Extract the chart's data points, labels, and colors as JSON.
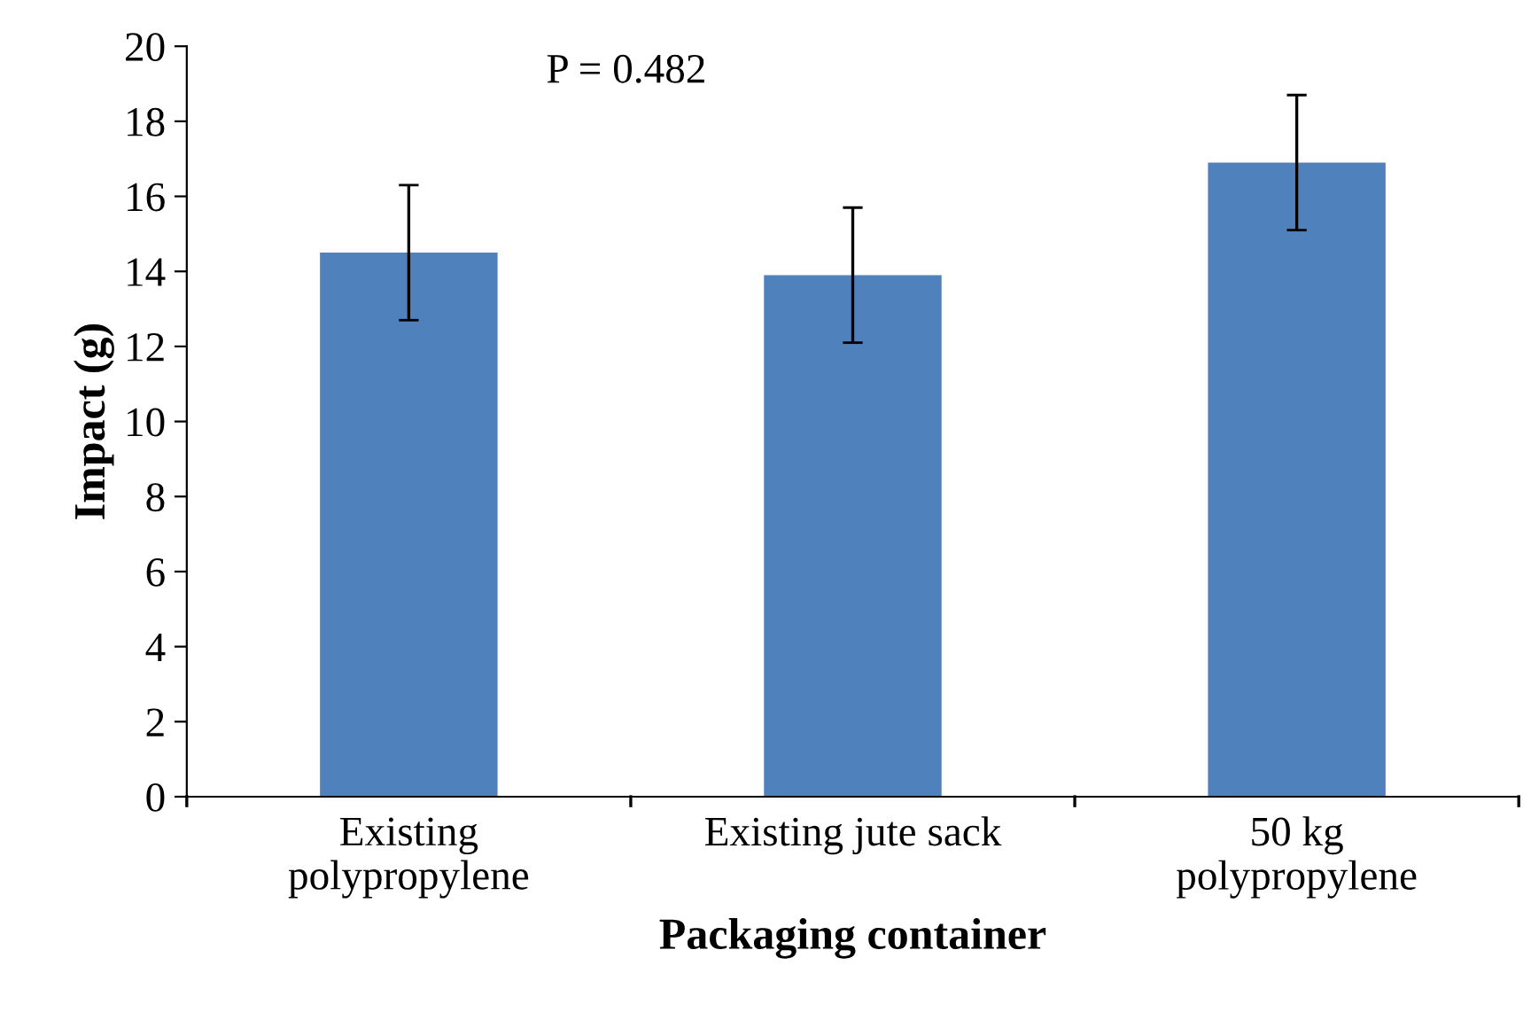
{
  "chart_data": {
    "type": "bar",
    "xlabel": "Packaging container",
    "ylabel": "Impact (g)",
    "categories": [
      "Existing\npolypropylene",
      "Existing jute sack",
      "50 kg\npolypropylene"
    ],
    "values": [
      14.5,
      13.9,
      16.9
    ],
    "errors": [
      1.8,
      1.8,
      1.8
    ],
    "color": "#4f81bd",
    "ylim": [
      0,
      20
    ],
    "yticks": [
      0,
      2,
      4,
      6,
      8,
      10,
      12,
      14,
      16,
      18,
      20
    ],
    "grid": false,
    "legend": false,
    "annotations": [
      "P = 0.482"
    ]
  }
}
